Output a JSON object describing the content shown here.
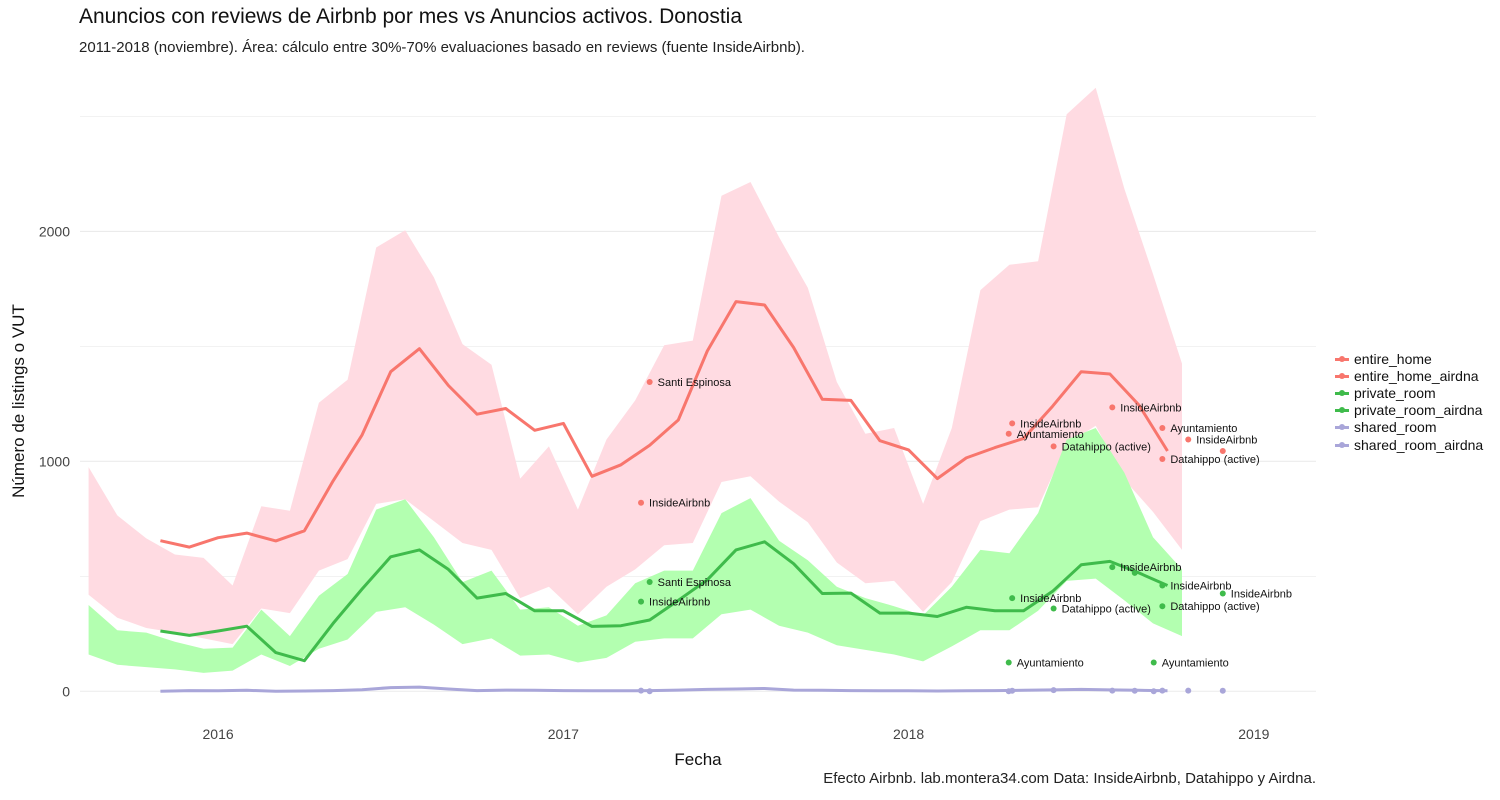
{
  "title": "Anuncios con reviews de Airbnb por mes vs Anuncios activos. Donostia",
  "subtitle": "2011-2018 (noviembre). Área: cálculo entre 30%-70% evaluaciones basado en reviews (fuente InsideAirbnb).",
  "caption": "Efecto Airbnb. lab.montera34.com Data: InsideAirbnb, Datahippo y Airdna.",
  "colors": {
    "entire": "#f8766d",
    "private": "#3fbb4b",
    "shared": "#a9a6d9",
    "entire_band": "#ffdbe2",
    "private_band": "#b3ffb0",
    "grid": "#ebebeb"
  },
  "chart_data": {
    "type": "line",
    "xlabel": "Fecha",
    "ylabel": "Número de listings o VUT",
    "xlim": [
      2015.6,
      2019.18
    ],
    "ylim": [
      -125,
      2650
    ],
    "x_ticks": [
      {
        "value": 2016,
        "label": "2016"
      },
      {
        "value": 2017,
        "label": "2017"
      },
      {
        "value": 2018,
        "label": "2018"
      },
      {
        "value": 2019,
        "label": "2019"
      }
    ],
    "y_ticks": [
      {
        "value": 0,
        "label": "0"
      },
      {
        "value": 1000,
        "label": "1000"
      },
      {
        "value": 2000,
        "label": "2000"
      }
    ],
    "y_minor": [
      500,
      1500,
      2500
    ],
    "grid": true,
    "legend_position": "right",
    "legend": [
      {
        "label": "entire_home",
        "color": "#f8766d"
      },
      {
        "label": "entire_home_airdna",
        "color": "#f8766d"
      },
      {
        "label": "private_room",
        "color": "#3fbb4b"
      },
      {
        "label": "private_room_airdna",
        "color": "#3fbb4b"
      },
      {
        "label": "shared_room",
        "color": "#a9a6d9"
      },
      {
        "label": "shared_room_airdna",
        "color": "#a9a6d9"
      }
    ],
    "bands": [
      {
        "name": "entire_home",
        "color": "#ffdbe2",
        "x": [
          2015.625,
          2015.708,
          2015.792,
          2015.875,
          2015.958,
          2016.042,
          2016.125,
          2016.208,
          2016.292,
          2016.375,
          2016.458,
          2016.542,
          2016.625,
          2016.708,
          2016.792,
          2016.875,
          2016.958,
          2017.042,
          2017.125,
          2017.208,
          2017.292,
          2017.375,
          2017.458,
          2017.542,
          2017.625,
          2017.708,
          2017.792,
          2017.875,
          2017.958,
          2018.042,
          2018.125,
          2018.208,
          2018.292,
          2018.375,
          2018.458,
          2018.542,
          2018.625,
          2018.708,
          2018.792
        ],
        "upper": [
          975,
          765,
          665,
          595,
          580,
          460,
          805,
          785,
          1255,
          1355,
          1930,
          2005,
          1800,
          1510,
          1420,
          925,
          1065,
          790,
          1095,
          1265,
          1505,
          1525,
          2155,
          2215,
          1975,
          1755,
          1345,
          1120,
          1145,
          815,
          1145,
          1745,
          1855,
          1870,
          2510,
          2625,
          2185,
          1815,
          1425
        ],
        "lower": [
          420,
          320,
          275,
          255,
          230,
          205,
          360,
          340,
          525,
          575,
          815,
          835,
          740,
          645,
          615,
          405,
          455,
          335,
          455,
          530,
          635,
          645,
          910,
          935,
          825,
          735,
          560,
          470,
          480,
          345,
          475,
          740,
          790,
          800,
          1075,
          1155,
          920,
          780,
          615
        ]
      },
      {
        "name": "private_room",
        "color": "#b3ffb0",
        "x": [
          2015.625,
          2015.708,
          2015.792,
          2015.875,
          2015.958,
          2016.042,
          2016.125,
          2016.208,
          2016.292,
          2016.375,
          2016.458,
          2016.542,
          2016.625,
          2016.708,
          2016.792,
          2016.875,
          2016.958,
          2017.042,
          2017.125,
          2017.208,
          2017.292,
          2017.375,
          2017.458,
          2017.542,
          2017.625,
          2017.708,
          2017.792,
          2017.875,
          2017.958,
          2018.042,
          2018.125,
          2018.208,
          2018.292,
          2018.375,
          2018.458,
          2018.542,
          2018.625,
          2018.708,
          2018.792
        ],
        "upper": [
          375,
          265,
          255,
          215,
          185,
          190,
          355,
          240,
          415,
          510,
          790,
          835,
          670,
          475,
          525,
          355,
          365,
          285,
          330,
          470,
          525,
          525,
          775,
          840,
          655,
          570,
          455,
          405,
          370,
          330,
          455,
          615,
          600,
          775,
          1095,
          1145,
          950,
          670,
          530
        ],
        "lower": [
          160,
          115,
          105,
          95,
          80,
          90,
          160,
          110,
          185,
          225,
          345,
          365,
          290,
          205,
          230,
          155,
          160,
          125,
          145,
          215,
          230,
          230,
          335,
          355,
          285,
          255,
          200,
          180,
          160,
          130,
          195,
          265,
          265,
          350,
          480,
          490,
          395,
          295,
          240
        ]
      }
    ],
    "series": [
      {
        "name": "entire_home",
        "color": "#f8766d",
        "x": [
          2015.833,
          2015.917,
          2016.0,
          2016.083,
          2016.167,
          2016.25,
          2016.333,
          2016.417,
          2016.5,
          2016.583,
          2016.667,
          2016.75,
          2016.833,
          2016.917,
          2017.0,
          2017.083,
          2017.167,
          2017.25,
          2017.333,
          2017.417,
          2017.5,
          2017.583,
          2017.667,
          2017.75,
          2017.833,
          2017.917,
          2018.0,
          2018.083,
          2018.167,
          2018.25,
          2018.333,
          2018.417,
          2018.5,
          2018.583,
          2018.667,
          2018.75
        ],
        "y": [
          655,
          627,
          668,
          688,
          654,
          698,
          915,
          1115,
          1390,
          1490,
          1330,
          1205,
          1230,
          1135,
          1165,
          935,
          985,
          1070,
          1180,
          1480,
          1695,
          1680,
          1495,
          1270,
          1265,
          1090,
          1050,
          925,
          1015,
          1060,
          1100,
          1240,
          1390,
          1380,
          1245,
          1045
        ]
      },
      {
        "name": "private_room",
        "color": "#3fbb4b",
        "x": [
          2015.833,
          2015.917,
          2016.0,
          2016.083,
          2016.167,
          2016.25,
          2016.333,
          2016.417,
          2016.5,
          2016.583,
          2016.667,
          2016.75,
          2016.833,
          2016.917,
          2017.0,
          2017.083,
          2017.167,
          2017.25,
          2017.333,
          2017.417,
          2017.5,
          2017.583,
          2017.667,
          2017.75,
          2017.833,
          2017.917,
          2018.0,
          2018.083,
          2018.167,
          2018.25,
          2018.333,
          2018.417,
          2018.5,
          2018.583,
          2018.667,
          2018.75
        ],
        "y": [
          262,
          243,
          262,
          283,
          168,
          133,
          295,
          445,
          585,
          615,
          530,
          405,
          425,
          350,
          350,
          282,
          285,
          310,
          395,
          485,
          615,
          650,
          555,
          425,
          427,
          340,
          340,
          325,
          365,
          350,
          350,
          435,
          550,
          565,
          515,
          460
        ]
      },
      {
        "name": "shared_room",
        "color": "#a9a6d9",
        "x": [
          2015.833,
          2015.917,
          2016.0,
          2016.083,
          2016.167,
          2016.25,
          2016.333,
          2016.417,
          2016.5,
          2016.583,
          2016.667,
          2016.75,
          2016.833,
          2016.917,
          2017.0,
          2017.083,
          2017.167,
          2017.25,
          2017.333,
          2017.417,
          2017.5,
          2017.583,
          2017.667,
          2017.75,
          2017.833,
          2017.917,
          2018.0,
          2018.083,
          2018.167,
          2018.25,
          2018.333,
          2018.417,
          2018.5,
          2018.583,
          2018.667,
          2018.75
        ],
        "y": [
          0,
          3,
          2,
          4,
          0,
          1,
          3,
          7,
          16,
          18,
          10,
          3,
          5,
          4,
          3,
          2,
          2,
          3,
          5,
          8,
          10,
          12,
          5,
          4,
          3,
          2,
          2,
          1,
          2,
          3,
          4,
          6,
          8,
          6,
          4,
          2
        ]
      }
    ],
    "points": [
      {
        "group": "entire",
        "x": 2017.25,
        "y": 1345,
        "label": "Santi Espinosa"
      },
      {
        "group": "entire",
        "x": 2017.225,
        "y": 820,
        "label": "InsideAirbnb"
      },
      {
        "group": "entire",
        "x": 2018.3,
        "y": 1165,
        "label": "InsideAirbnb"
      },
      {
        "group": "entire",
        "x": 2018.29,
        "y": 1120,
        "label": "Ayuntamiento"
      },
      {
        "group": "entire",
        "x": 2018.42,
        "y": 1065,
        "label": "Datahippo (active)"
      },
      {
        "group": "entire",
        "x": 2018.59,
        "y": 1235,
        "label": "InsideAirbnb"
      },
      {
        "group": "entire",
        "x": 2018.735,
        "y": 1145,
        "label": "Ayuntamiento"
      },
      {
        "group": "entire",
        "x": 2018.81,
        "y": 1095,
        "label": "InsideAirbnb"
      },
      {
        "group": "entire",
        "x": 2018.735,
        "y": 1010,
        "label": "Datahippo (active)"
      },
      {
        "group": "entire",
        "x": 2018.91,
        "y": 1045,
        "label": ""
      },
      {
        "group": "private",
        "x": 2017.25,
        "y": 475,
        "label": "Santi Espinosa"
      },
      {
        "group": "private",
        "x": 2017.225,
        "y": 390,
        "label": "InsideAirbnb"
      },
      {
        "group": "private",
        "x": 2018.3,
        "y": 405,
        "label": "InsideAirbnb"
      },
      {
        "group": "private",
        "x": 2018.42,
        "y": 360,
        "label": "Datahippo (active)"
      },
      {
        "group": "private",
        "x": 2018.29,
        "y": 125,
        "label": "Ayuntamiento"
      },
      {
        "group": "private",
        "x": 2018.59,
        "y": 540,
        "label": "InsideAirbnb"
      },
      {
        "group": "private",
        "x": 2018.735,
        "y": 460,
        "label": "InsideAirbnb"
      },
      {
        "group": "private",
        "x": 2018.735,
        "y": 370,
        "label": "Datahippo (active)"
      },
      {
        "group": "private",
        "x": 2018.71,
        "y": 125,
        "label": "Ayuntamiento"
      },
      {
        "group": "private",
        "x": 2018.91,
        "y": 425,
        "label": "InsideAirbnb"
      },
      {
        "group": "private",
        "x": 2018.655,
        "y": 515,
        "label": ""
      },
      {
        "group": "shared",
        "x": 2017.225,
        "y": 3,
        "label": ""
      },
      {
        "group": "shared",
        "x": 2017.25,
        "y": 0,
        "label": ""
      },
      {
        "group": "shared",
        "x": 2018.29,
        "y": 0,
        "label": ""
      },
      {
        "group": "shared",
        "x": 2018.3,
        "y": 2,
        "label": ""
      },
      {
        "group": "shared",
        "x": 2018.42,
        "y": 5,
        "label": ""
      },
      {
        "group": "shared",
        "x": 2018.59,
        "y": 3,
        "label": ""
      },
      {
        "group": "shared",
        "x": 2018.655,
        "y": 2,
        "label": ""
      },
      {
        "group": "shared",
        "x": 2018.71,
        "y": 0,
        "label": ""
      },
      {
        "group": "shared",
        "x": 2018.735,
        "y": 3,
        "label": ""
      },
      {
        "group": "shared",
        "x": 2018.81,
        "y": 3,
        "label": ""
      },
      {
        "group": "shared",
        "x": 2018.91,
        "y": 2,
        "label": ""
      }
    ]
  }
}
